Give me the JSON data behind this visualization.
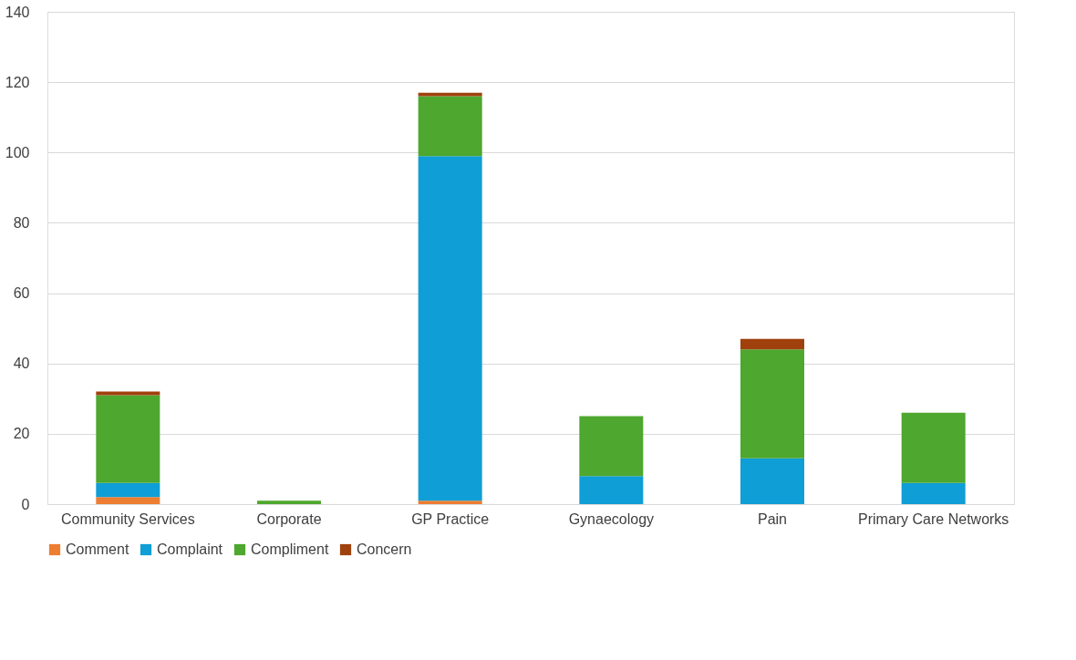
{
  "chart_data": {
    "type": "bar",
    "stacked": true,
    "categories": [
      "Community Services",
      "Corporate",
      "GP Practice",
      "Gynaecology",
      "Pain",
      "Primary Care Networks"
    ],
    "series": [
      {
        "name": "Comment",
        "color": "#ed7d31",
        "values": [
          2,
          0,
          1,
          0,
          0,
          0
        ]
      },
      {
        "name": "Complaint",
        "color": "#0f9ed5",
        "values": [
          4,
          0,
          98,
          8,
          13,
          6
        ]
      },
      {
        "name": "Compliment",
        "color": "#4ea72e",
        "values": [
          25,
          1,
          17,
          17,
          31,
          20
        ]
      },
      {
        "name": "Concern",
        "color": "#a0410d",
        "values": [
          1,
          0,
          1,
          0,
          3,
          0
        ]
      }
    ],
    "ylim": [
      0,
      140
    ],
    "yticks": [
      0,
      20,
      40,
      60,
      80,
      100,
      120,
      140
    ],
    "grid": "y",
    "legend": "bottom"
  }
}
